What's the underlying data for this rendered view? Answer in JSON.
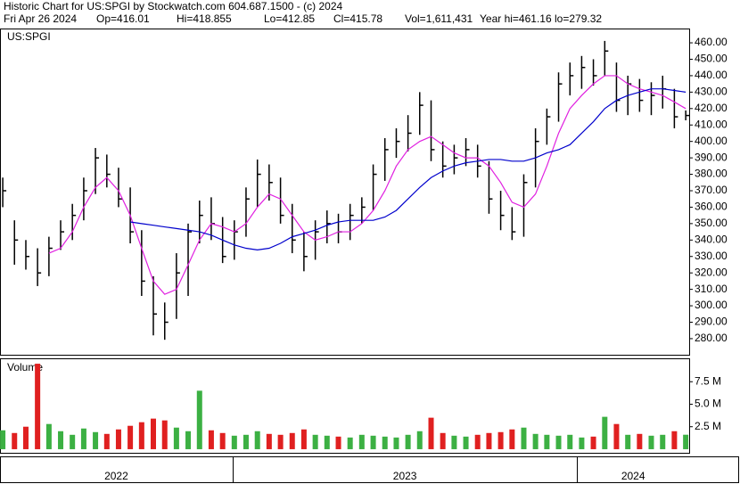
{
  "header": {
    "title": "Historic Chart for US:SPGI by Stockwatch.com 604.687.1500 - (c) 2024",
    "stats": [
      "Fri Apr 26 2024",
      "Op=416.01",
      "Hi=418.855",
      "Lo=412.85",
      "Cl=415.78",
      "Vol=1,611,431",
      "Year hi=461.16",
      "lo=279.32"
    ]
  },
  "chart_data": {
    "type": "ohlc",
    "symbol": "US:SPGI",
    "x": [
      2022.333,
      2022.367,
      2022.4,
      2022.434,
      2022.467,
      2022.501,
      2022.535,
      2022.568,
      2022.602,
      2022.635,
      2022.669,
      2022.703,
      2022.736,
      2022.77,
      2022.803,
      2022.837,
      2022.871,
      2022.904,
      2022.938,
      2022.971,
      2023.005,
      2023.039,
      2023.072,
      2023.106,
      2023.139,
      2023.173,
      2023.207,
      2023.24,
      2023.274,
      2023.307,
      2023.341,
      2023.375,
      2023.408,
      2023.442,
      2023.475,
      2023.509,
      2023.543,
      2023.576,
      2023.61,
      2023.643,
      2023.677,
      2023.711,
      2023.744,
      2023.778,
      2023.811,
      2023.845,
      2023.879,
      2023.912,
      2023.946,
      2023.979,
      2024.013,
      2024.047,
      2024.08,
      2024.114,
      2024.147,
      2024.181,
      2024.215,
      2024.248,
      2024.282,
      2024.315
    ],
    "close": [
      370,
      340,
      330,
      320,
      335,
      345,
      355,
      370,
      390,
      380,
      365,
      345,
      315,
      295,
      290,
      320,
      345,
      355,
      350,
      330,
      345,
      365,
      380,
      375,
      355,
      340,
      330,
      345,
      350,
      345,
      355,
      360,
      380,
      395,
      400,
      405,
      422,
      395,
      385,
      390,
      395,
      385,
      365,
      355,
      345,
      375,
      400,
      415,
      435,
      440,
      445,
      440,
      455,
      425,
      435,
      425,
      428,
      432,
      415,
      415.78
    ],
    "high": [
      378,
      352,
      340,
      335,
      342,
      352,
      362,
      378,
      396,
      392,
      384,
      372,
      346,
      318,
      302,
      332,
      350,
      364,
      366,
      354,
      352,
      372,
      389,
      386,
      378,
      362,
      345,
      352,
      358,
      356,
      362,
      366,
      386,
      402,
      408,
      416,
      430,
      425,
      400,
      398,
      402,
      398,
      388,
      370,
      360,
      380,
      408,
      420,
      442,
      448,
      452,
      450,
      461.16,
      448,
      440,
      438,
      436,
      440,
      432,
      418.855
    ],
    "low": [
      360,
      325,
      322,
      312,
      318,
      334,
      340,
      352,
      368,
      372,
      360,
      338,
      306,
      282,
      279.32,
      292,
      306,
      338,
      340,
      326,
      328,
      342,
      360,
      364,
      350,
      332,
      321,
      328,
      338,
      338,
      340,
      350,
      358,
      376,
      390,
      394,
      404,
      388,
      378,
      380,
      385,
      378,
      356,
      346,
      340,
      342,
      372,
      398,
      412,
      428,
      432,
      434,
      440,
      418,
      416,
      418,
      416,
      420,
      408,
      412.85
    ],
    "bar_color": "#000000",
    "moving_averages": [
      {
        "color": "#e020e0",
        "values": [
          null,
          null,
          null,
          null,
          332,
          335,
          345,
          360,
          372,
          378,
          370,
          355,
          335,
          315,
          307,
          310,
          325,
          340,
          350,
          348,
          345,
          350,
          360,
          368,
          365,
          355,
          345,
          340,
          342,
          345,
          345,
          350,
          358,
          370,
          385,
          395,
          400,
          403,
          398,
          393,
          390,
          390,
          385,
          375,
          363,
          360,
          368,
          385,
          405,
          420,
          428,
          435,
          440,
          440,
          435,
          432,
          430,
          428,
          424,
          420
        ]
      },
      {
        "color": "#0000cc",
        "values": [
          null,
          null,
          null,
          null,
          null,
          null,
          null,
          null,
          null,
          null,
          null,
          351,
          350,
          349,
          348,
          347,
          346,
          345,
          343,
          340,
          337,
          335,
          334,
          335,
          338,
          342,
          344,
          346,
          349,
          351,
          352,
          352,
          352,
          354,
          358,
          365,
          372,
          378,
          382,
          385,
          387,
          388,
          389,
          389,
          388,
          388,
          390,
          393,
          395,
          398,
          405,
          412,
          420,
          425,
          428,
          430,
          432,
          432,
          431,
          430
        ]
      }
    ],
    "xlim": [
      2022.325,
      2024.325
    ],
    "xticks": [
      2023,
      2024
    ],
    "year_labels": [
      "2022",
      "2023",
      "2024"
    ],
    "ylim": [
      270.2,
      468.7
    ],
    "yticks": [
      {
        "value": 280,
        "label": "280.00"
      },
      {
        "value": 290,
        "label": "290.00"
      },
      {
        "value": 300,
        "label": "300.00"
      },
      {
        "value": 310,
        "label": "310.00"
      },
      {
        "value": 320,
        "label": "320.00"
      },
      {
        "value": 330,
        "label": "330.00"
      },
      {
        "value": 340,
        "label": "340.00"
      },
      {
        "value": 350,
        "label": "350.00"
      },
      {
        "value": 360,
        "label": "360.00"
      },
      {
        "value": 370,
        "label": "370.00"
      },
      {
        "value": 380,
        "label": "380.00"
      },
      {
        "value": 390,
        "label": "390.00"
      },
      {
        "value": 400,
        "label": "400.00"
      },
      {
        "value": 410,
        "label": "410.00"
      },
      {
        "value": 420,
        "label": "420.00"
      },
      {
        "value": 430,
        "label": "430.00"
      },
      {
        "value": 440,
        "label": "440.00"
      },
      {
        "value": 450,
        "label": "450.00"
      },
      {
        "value": 460,
        "label": "460.00"
      }
    ],
    "volume": {
      "label": "Volume",
      "up_color": "#3cb043",
      "down_color": "#e02020",
      "values": [
        2.1,
        1.8,
        2.5,
        9.5,
        2.8,
        2.0,
        1.6,
        2.3,
        1.9,
        1.7,
        2.2,
        2.6,
        3.0,
        3.4,
        3.2,
        2.4,
        2.0,
        6.5,
        2.1,
        1.8,
        1.5,
        1.6,
        2.0,
        1.7,
        1.6,
        1.8,
        2.2,
        1.6,
        1.5,
        1.4,
        1.3,
        1.6,
        1.5,
        1.4,
        1.3,
        1.6,
        2.0,
        3.5,
        1.8,
        1.5,
        1.4,
        1.6,
        1.8,
        1.9,
        2.2,
        2.4,
        1.7,
        1.6,
        1.5,
        1.6,
        1.3,
        1.4,
        3.6,
        2.8,
        1.6,
        1.7,
        1.5,
        1.6,
        2.0,
        1.61
      ],
      "ylim": [
        -0.4,
        10.1
      ],
      "yticks": [
        {
          "value": 2.5,
          "label": "2.5 M"
        },
        {
          "value": 5,
          "label": "5.0 M"
        },
        {
          "value": 7.5,
          "label": "7.5 M"
        }
      ]
    }
  }
}
